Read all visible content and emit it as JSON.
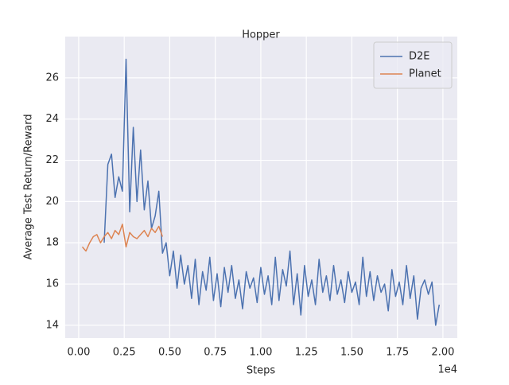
{
  "chart_data": {
    "type": "line",
    "title": "Hopper",
    "x_label": "Steps",
    "y_label": "Average Test Return/Reward",
    "x_offset_label": "1e4",
    "xlim": [
      -0.074,
      2.079
    ],
    "ylim": [
      13.38,
      28.0
    ],
    "xticks": [
      {
        "value": 0,
        "label": "0.00"
      },
      {
        "value": 0.25,
        "label": "0.25"
      },
      {
        "value": 0.5,
        "label": "0.50"
      },
      {
        "value": 0.75,
        "label": "0.75"
      },
      {
        "value": 1,
        "label": "1.00"
      },
      {
        "value": 1.25,
        "label": "1.25"
      },
      {
        "value": 1.5,
        "label": "1.50"
      },
      {
        "value": 1.75,
        "label": "1.75"
      },
      {
        "value": 2,
        "label": "2.00"
      }
    ],
    "yticks": [
      14,
      16,
      18,
      20,
      22,
      24,
      26
    ],
    "grid": true,
    "legend": "upper right",
    "series": [
      {
        "name": "D2E",
        "color": "#4c72b0",
        "x": [
          0.14,
          0.16,
          0.18,
          0.2,
          0.22,
          0.24,
          0.26,
          0.28,
          0.3,
          0.32,
          0.34,
          0.36,
          0.38,
          0.4,
          0.42,
          0.44,
          0.46,
          0.48,
          0.5,
          0.52,
          0.54,
          0.56,
          0.58,
          0.6,
          0.62,
          0.64,
          0.66,
          0.68,
          0.7,
          0.72,
          0.74,
          0.76,
          0.78,
          0.8,
          0.82,
          0.84,
          0.86,
          0.88,
          0.9,
          0.92,
          0.94,
          0.96,
          0.98,
          1,
          1.02,
          1.04,
          1.06,
          1.08,
          1.1,
          1.12,
          1.14,
          1.16,
          1.18,
          1.2,
          1.22,
          1.24,
          1.26,
          1.28,
          1.3,
          1.32,
          1.34,
          1.36,
          1.38,
          1.4,
          1.42,
          1.44,
          1.46,
          1.48,
          1.5,
          1.52,
          1.54,
          1.56,
          1.58,
          1.6,
          1.62,
          1.64,
          1.66,
          1.68,
          1.7,
          1.72,
          1.74,
          1.76,
          1.78,
          1.8,
          1.82,
          1.84,
          1.86,
          1.88,
          1.9,
          1.92,
          1.94,
          1.96,
          1.98
        ],
        "values": [
          18.0,
          21.8,
          22.3,
          20.2,
          21.2,
          20.5,
          26.9,
          19.5,
          23.6,
          20.0,
          22.5,
          19.6,
          21.0,
          18.7,
          19.3,
          20.5,
          17.5,
          18.0,
          16.4,
          17.6,
          15.8,
          17.4,
          16.0,
          16.9,
          15.3,
          17.2,
          15.0,
          16.6,
          15.7,
          17.3,
          15.2,
          16.5,
          14.9,
          16.8,
          15.6,
          16.9,
          15.3,
          16.2,
          14.8,
          16.6,
          15.8,
          16.3,
          15.1,
          16.8,
          15.5,
          16.4,
          15.0,
          17.3,
          15.2,
          16.7,
          15.9,
          17.6,
          15.0,
          16.5,
          14.5,
          16.9,
          15.4,
          16.2,
          15.0,
          17.2,
          15.6,
          16.4,
          15.2,
          16.9,
          15.5,
          16.2,
          15.1,
          16.6,
          15.6,
          16.1,
          15.0,
          17.3,
          15.4,
          16.6,
          15.2,
          16.4,
          15.6,
          16.0,
          14.7,
          16.7,
          15.4,
          16.1,
          15.0,
          16.9,
          15.3,
          16.4,
          14.3,
          15.8,
          16.2,
          15.5,
          16.1,
          14.0,
          15.0
        ]
      },
      {
        "name": "Planet",
        "color": "#dd8452",
        "x": [
          0.02,
          0.04,
          0.06,
          0.08,
          0.1,
          0.12,
          0.14,
          0.16,
          0.18,
          0.2,
          0.22,
          0.24,
          0.26,
          0.28,
          0.3,
          0.32,
          0.34,
          0.36,
          0.38,
          0.4,
          0.42,
          0.44,
          0.46
        ],
        "values": [
          17.8,
          17.6,
          18.0,
          18.3,
          18.4,
          18.0,
          18.3,
          18.5,
          18.2,
          18.6,
          18.4,
          18.9,
          17.8,
          18.5,
          18.3,
          18.2,
          18.4,
          18.6,
          18.3,
          18.7,
          18.5,
          18.8,
          18.3
        ]
      }
    ]
  }
}
